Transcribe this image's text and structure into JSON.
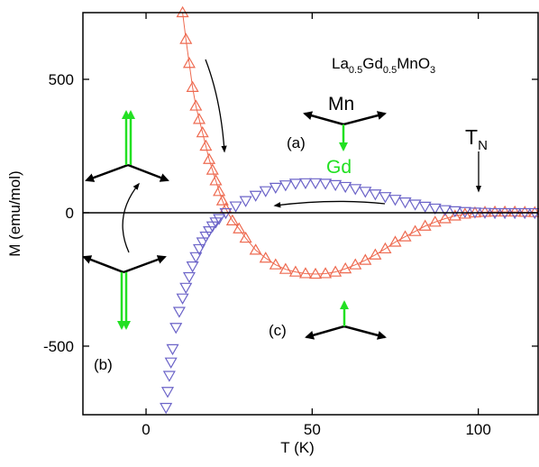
{
  "chart_data": {
    "type": "scatter",
    "x_label": "T (K)",
    "y_label": "M (emu/mol)",
    "xlim": [
      -19,
      118
    ],
    "ylim": [
      -757,
      750
    ],
    "xticks": [
      0,
      50,
      100
    ],
    "yticks": [
      -500,
      0,
      500
    ],
    "reference_line_y": 0,
    "series": [
      {
        "color": "#ee6a50",
        "marker": "triangle-up",
        "line": true,
        "x": [
          11,
          12,
          13,
          14,
          15,
          16,
          17,
          18,
          19,
          20,
          21,
          22,
          23,
          24,
          26,
          28,
          30,
          33,
          36,
          39,
          42,
          45,
          48,
          51,
          54,
          57,
          60,
          63,
          66,
          69,
          72,
          75,
          78,
          81,
          84,
          87,
          90,
          93,
          96,
          99,
          102,
          105,
          108,
          111,
          114,
          117
        ],
        "values": [
          750,
          650,
          560,
          470,
          400,
          350,
          300,
          250,
          200,
          160,
          120,
          80,
          45,
          15,
          -30,
          -60,
          -95,
          -140,
          -170,
          -195,
          -212,
          -222,
          -228,
          -230,
          -228,
          -222,
          -210,
          -195,
          -178,
          -158,
          -135,
          -110,
          -90,
          -70,
          -50,
          -35,
          -22,
          -12,
          -5,
          0,
          2,
          3,
          3,
          3,
          2,
          1
        ]
      },
      {
        "color": "#6b63c8",
        "marker": "triangle-down",
        "line": false,
        "x": [
          6,
          6.5,
          7,
          7.5,
          8,
          9,
          10,
          11,
          12,
          13,
          14,
          15,
          16,
          17,
          18,
          19,
          20,
          21,
          22,
          24,
          27,
          30,
          33,
          36,
          39,
          42,
          45,
          48,
          51,
          54,
          57,
          60,
          63,
          66,
          69,
          72,
          75,
          78,
          81,
          84,
          87,
          90,
          93,
          96,
          99,
          102,
          105,
          108,
          111,
          114,
          117
        ],
        "values": [
          -730,
          -670,
          -610,
          -560,
          -510,
          -430,
          -370,
          -320,
          -280,
          -240,
          -200,
          -165,
          -135,
          -110,
          -88,
          -68,
          -50,
          -35,
          -22,
          0,
          25,
          45,
          65,
          82,
          95,
          104,
          110,
          112,
          112,
          110,
          105,
          98,
          90,
          80,
          70,
          60,
          50,
          40,
          32,
          24,
          17,
          11,
          7,
          4,
          2,
          1,
          0,
          0,
          0,
          0,
          0
        ]
      }
    ],
    "compound": [
      "La",
      "0.5",
      "Gd",
      "0.5",
      "MnO",
      "3"
    ],
    "annotations": {
      "mn": "Mn",
      "gd": "Gd",
      "a": "(a)",
      "b": "(b)",
      "c": "(c)",
      "tn": "T",
      "tn_sub": "N"
    }
  }
}
